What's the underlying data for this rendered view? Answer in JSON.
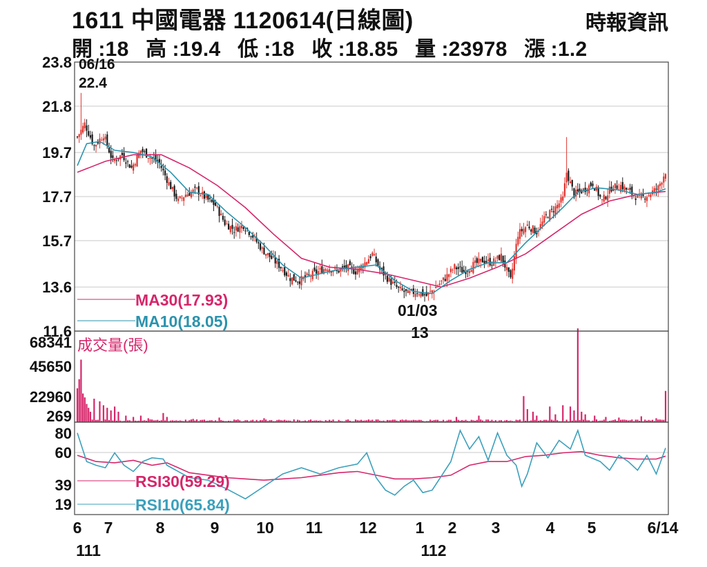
{
  "header": {
    "title": "1611 中國電器 1120614(日線圖)",
    "source": "時報資訊",
    "stats": [
      {
        "label": "開",
        "value": "18"
      },
      {
        "label": "高",
        "value": "19.4"
      },
      {
        "label": "低",
        "value": "18"
      },
      {
        "label": "收",
        "value": "18.85"
      },
      {
        "label": "量",
        "value": "23978"
      },
      {
        "label": "漲",
        "value": "1.2"
      }
    ]
  },
  "colors": {
    "ma30": "#d6266a",
    "ma10": "#2a93ad",
    "up_candle": "#e0332e",
    "down_candle": "#1a1a1a",
    "volume": "#d6266a",
    "rsi30": "#d6266a",
    "rsi10": "#3aa0bc",
    "grid": "#c9c9c9"
  },
  "chart_data": [
    {
      "type": "candlestick",
      "panel": "price",
      "yticks": [
        "23.8",
        "21.8",
        "19.7",
        "17.7",
        "15.7",
        "13.6",
        "11.6"
      ],
      "ylim": [
        11.6,
        23.8
      ],
      "annotations": [
        {
          "label": "06/16",
          "value": "22.4",
          "kind": "high"
        },
        {
          "label": "01/03",
          "value": "13",
          "kind": "low"
        }
      ],
      "series": [
        {
          "name": "MA30(17.93)",
          "key": "ma30"
        },
        {
          "name": "MA10(18.05)",
          "key": "ma10"
        }
      ],
      "x_month_ticks": [
        "6",
        "7",
        "8",
        "9",
        "10",
        "11",
        "12",
        "1",
        "2",
        "3",
        "4",
        "5",
        "6/14"
      ],
      "x_year_labels": [
        "111",
        "112"
      ],
      "close_path": [
        [
          0,
          20.4
        ],
        [
          4,
          21.0
        ],
        [
          9,
          20.0
        ],
        [
          14,
          20.5
        ],
        [
          19,
          19.3
        ],
        [
          24,
          19.6
        ],
        [
          29,
          19.0
        ],
        [
          34,
          19.8
        ],
        [
          39,
          19.5
        ],
        [
          44,
          19.2
        ],
        [
          49,
          18.3
        ],
        [
          54,
          17.5
        ],
        [
          58,
          17.8
        ],
        [
          64,
          18.0
        ],
        [
          69,
          17.6
        ],
        [
          74,
          17.3
        ],
        [
          79,
          16.5
        ],
        [
          84,
          16.2
        ],
        [
          89,
          16.4
        ],
        [
          94,
          15.9
        ],
        [
          99,
          15.3
        ],
        [
          104,
          14.9
        ],
        [
          109,
          14.5
        ],
        [
          114,
          14.0
        ],
        [
          119,
          13.9
        ],
        [
          124,
          14.1
        ],
        [
          129,
          14.3
        ],
        [
          134,
          14.5
        ],
        [
          139,
          14.3
        ],
        [
          144,
          14.5
        ],
        [
          149,
          14.3
        ],
        [
          154,
          14.7
        ],
        [
          158,
          15.1
        ],
        [
          162,
          14.4
        ],
        [
          167,
          13.9
        ],
        [
          172,
          13.5
        ],
        [
          177,
          13.3
        ],
        [
          182,
          13.4
        ],
        [
          187,
          13.2
        ],
        [
          192,
          13.6
        ],
        [
          197,
          14.0
        ],
        [
          202,
          14.5
        ],
        [
          207,
          14.3
        ],
        [
          212,
          14.6
        ],
        [
          217,
          14.8
        ],
        [
          222,
          14.7
        ],
        [
          227,
          15.0
        ],
        [
          232,
          13.9
        ],
        [
          236,
          16.0
        ],
        [
          241,
          16.4
        ],
        [
          246,
          16.1
        ],
        [
          251,
          16.8
        ],
        [
          256,
          17.2
        ],
        [
          260,
          17.6
        ],
        [
          262,
          18.8
        ],
        [
          266,
          17.8
        ],
        [
          271,
          18.0
        ],
        [
          276,
          18.3
        ],
        [
          281,
          17.5
        ],
        [
          286,
          18.1
        ],
        [
          291,
          18.2
        ],
        [
          296,
          17.9
        ],
        [
          301,
          17.6
        ],
        [
          306,
          17.8
        ],
        [
          311,
          18.1
        ],
        [
          315,
          18.85
        ]
      ],
      "ma30_path": [
        [
          0,
          18.8
        ],
        [
          15,
          19.3
        ],
        [
          30,
          19.6
        ],
        [
          45,
          19.6
        ],
        [
          60,
          19.0
        ],
        [
          75,
          18.2
        ],
        [
          90,
          17.2
        ],
        [
          105,
          16.0
        ],
        [
          120,
          14.9
        ],
        [
          135,
          14.5
        ],
        [
          150,
          14.4
        ],
        [
          165,
          14.2
        ],
        [
          180,
          13.9
        ],
        [
          195,
          13.6
        ],
        [
          210,
          14.0
        ],
        [
          225,
          14.5
        ],
        [
          240,
          15.1
        ],
        [
          255,
          16.0
        ],
        [
          270,
          16.9
        ],
        [
          285,
          17.5
        ],
        [
          300,
          17.8
        ],
        [
          315,
          17.93
        ]
      ],
      "ma10_path": [
        [
          0,
          19.1
        ],
        [
          5,
          20.1
        ],
        [
          12,
          20.2
        ],
        [
          20,
          19.8
        ],
        [
          30,
          19.7
        ],
        [
          40,
          19.5
        ],
        [
          50,
          18.8
        ],
        [
          60,
          17.9
        ],
        [
          70,
          17.8
        ],
        [
          80,
          17.0
        ],
        [
          90,
          16.3
        ],
        [
          100,
          15.5
        ],
        [
          110,
          14.6
        ],
        [
          120,
          14.0
        ],
        [
          130,
          14.2
        ],
        [
          140,
          14.4
        ],
        [
          150,
          14.5
        ],
        [
          160,
          14.6
        ],
        [
          170,
          13.9
        ],
        [
          180,
          13.4
        ],
        [
          190,
          13.3
        ],
        [
          200,
          13.9
        ],
        [
          210,
          14.4
        ],
        [
          220,
          14.7
        ],
        [
          230,
          14.7
        ],
        [
          240,
          15.6
        ],
        [
          250,
          16.4
        ],
        [
          260,
          17.2
        ],
        [
          268,
          17.9
        ],
        [
          278,
          18.1
        ],
        [
          290,
          18.0
        ],
        [
          300,
          17.8
        ],
        [
          310,
          17.9
        ],
        [
          315,
          18.05
        ]
      ]
    },
    {
      "type": "bar",
      "panel": "volume",
      "title": "成交量(張)",
      "yticks": [
        "68341",
        "45650",
        "22960",
        "269"
      ],
      "ylim": [
        269,
        68341
      ],
      "values": [
        [
          0,
          26000
        ],
        [
          1,
          33000
        ],
        [
          2,
          48000
        ],
        [
          3,
          22000
        ],
        [
          4,
          19000
        ],
        [
          5,
          14000
        ],
        [
          6,
          11000
        ],
        [
          7,
          8000
        ],
        [
          9,
          18000
        ],
        [
          12,
          16000
        ],
        [
          14,
          13000
        ],
        [
          16,
          11000
        ],
        [
          18,
          9000
        ],
        [
          20,
          12000
        ],
        [
          22,
          8000
        ],
        [
          26,
          5000
        ],
        [
          30,
          4000
        ],
        [
          34,
          5000
        ],
        [
          38,
          3000
        ],
        [
          46,
          7000
        ],
        [
          48,
          4000
        ],
        [
          62,
          2500
        ],
        [
          76,
          3500
        ],
        [
          100,
          3000
        ],
        [
          125,
          2000
        ],
        [
          150,
          1500
        ],
        [
          175,
          1500
        ],
        [
          203,
          4000
        ],
        [
          215,
          5000
        ],
        [
          239,
          20000
        ],
        [
          241,
          10000
        ],
        [
          244,
          8000
        ],
        [
          246,
          5000
        ],
        [
          253,
          12000
        ],
        [
          256,
          6000
        ],
        [
          260,
          13000
        ],
        [
          264,
          12000
        ],
        [
          266,
          9000
        ],
        [
          268,
          72000
        ],
        [
          270,
          8000
        ],
        [
          272,
          6000
        ],
        [
          277,
          5000
        ],
        [
          283,
          4000
        ],
        [
          290,
          3500
        ],
        [
          302,
          4500
        ],
        [
          310,
          3000
        ],
        [
          315,
          23978
        ]
      ]
    },
    {
      "type": "line",
      "panel": "rsi",
      "yticks": [
        "80",
        "60",
        "39",
        "19"
      ],
      "ylim": [
        19,
        80
      ],
      "series": [
        {
          "name": "RSI30(59.29)",
          "key": "rsi30",
          "path": [
            [
              0,
              60
            ],
            [
              10,
              55
            ],
            [
              20,
              54
            ],
            [
              30,
              56
            ],
            [
              40,
              52
            ],
            [
              48,
              54
            ],
            [
              60,
              46
            ],
            [
              70,
              44
            ],
            [
              80,
              42
            ],
            [
              90,
              41
            ],
            [
              100,
              40
            ],
            [
              110,
              41
            ],
            [
              120,
              42
            ],
            [
              130,
              44
            ],
            [
              140,
              46
            ],
            [
              150,
              47
            ],
            [
              160,
              44
            ],
            [
              170,
              41
            ],
            [
              180,
              41
            ],
            [
              190,
              42
            ],
            [
              200,
              44
            ],
            [
              210,
              52
            ],
            [
              220,
              55
            ],
            [
              230,
              55
            ],
            [
              240,
              59
            ],
            [
              250,
              60
            ],
            [
              260,
              62
            ],
            [
              270,
              63
            ],
            [
              280,
              60
            ],
            [
              290,
              58
            ],
            [
              300,
              57
            ],
            [
              310,
              57
            ],
            [
              315,
              59.29
            ]
          ]
        },
        {
          "name": "RSI10(65.84)",
          "key": "rsi10",
          "path": [
            [
              0,
              78
            ],
            [
              5,
              55
            ],
            [
              10,
              52
            ],
            [
              15,
              50
            ],
            [
              20,
              62
            ],
            [
              25,
              52
            ],
            [
              30,
              47
            ],
            [
              35,
              55
            ],
            [
              40,
              58
            ],
            [
              46,
              57
            ],
            [
              48,
              52
            ],
            [
              60,
              42
            ],
            [
              70,
              40
            ],
            [
              80,
              33
            ],
            [
              90,
              25
            ],
            [
              100,
              35
            ],
            [
              110,
              45
            ],
            [
              120,
              50
            ],
            [
              130,
              45
            ],
            [
              140,
              50
            ],
            [
              150,
              53
            ],
            [
              155,
              62
            ],
            [
              160,
              42
            ],
            [
              165,
              32
            ],
            [
              170,
              28
            ],
            [
              175,
              35
            ],
            [
              180,
              40
            ],
            [
              185,
              30
            ],
            [
              190,
              32
            ],
            [
              200,
              55
            ],
            [
              205,
              80
            ],
            [
              210,
              65
            ],
            [
              215,
              75
            ],
            [
              220,
              56
            ],
            [
              225,
              78
            ],
            [
              230,
              60
            ],
            [
              235,
              52
            ],
            [
              238,
              35
            ],
            [
              241,
              45
            ],
            [
              246,
              70
            ],
            [
              252,
              58
            ],
            [
              258,
              72
            ],
            [
              264,
              65
            ],
            [
              268,
              80
            ],
            [
              272,
              60
            ],
            [
              280,
              55
            ],
            [
              285,
              48
            ],
            [
              290,
              60
            ],
            [
              295,
              55
            ],
            [
              300,
              48
            ],
            [
              305,
              60
            ],
            [
              310,
              45
            ],
            [
              315,
              65.84
            ]
          ]
        }
      ]
    }
  ]
}
